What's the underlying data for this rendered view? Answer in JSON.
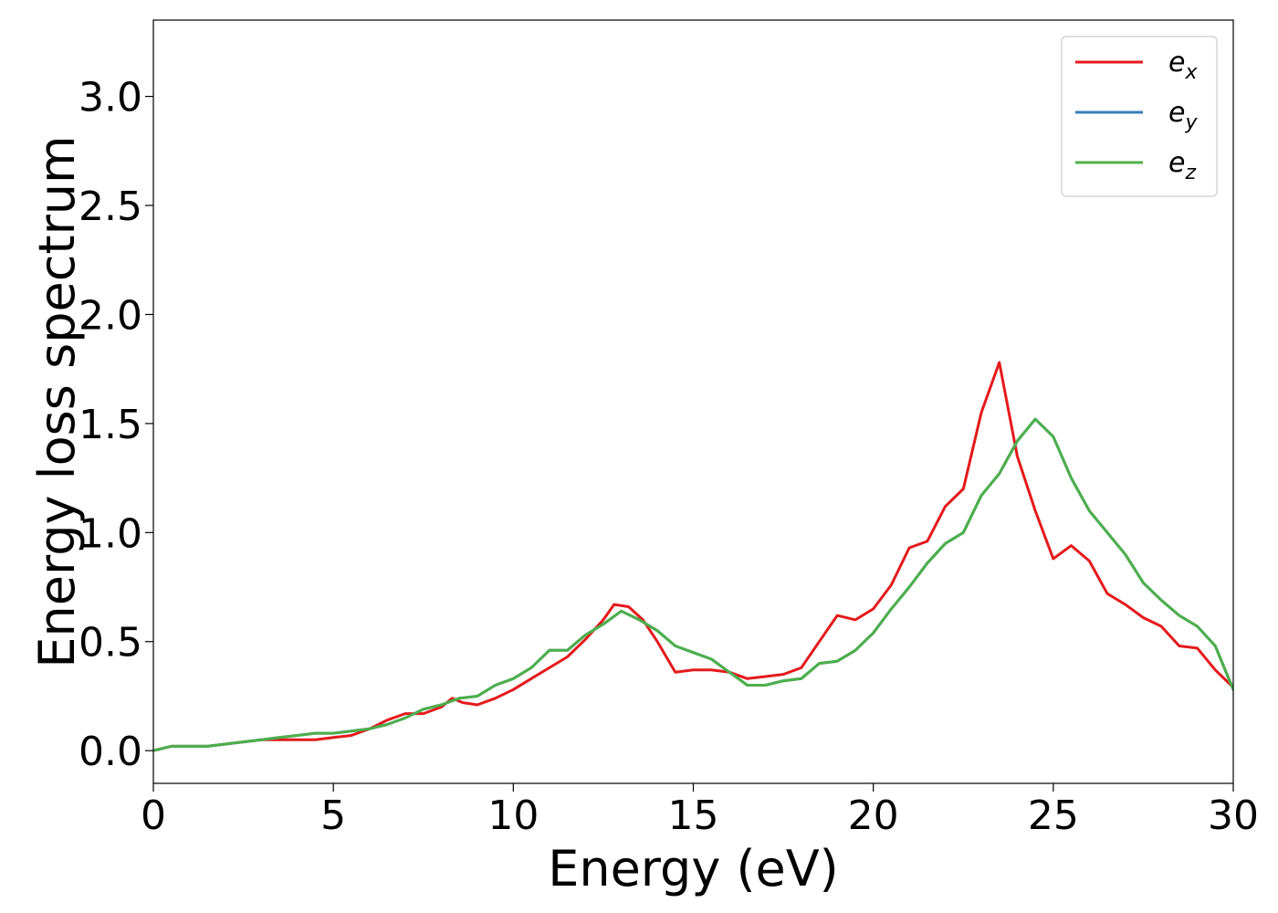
{
  "chart_data": {
    "type": "line",
    "xlabel": "Energy (eV)",
    "ylabel": "Energy loss spectrum",
    "xlim": [
      0,
      30
    ],
    "ylim": [
      -0.15,
      3.35
    ],
    "xticks": [
      "0",
      "5",
      "10",
      "15",
      "20",
      "25",
      "30"
    ],
    "yticks": [
      "0.0",
      "0.5",
      "1.0",
      "1.5",
      "2.0",
      "2.5",
      "3.0"
    ],
    "grid": false,
    "legend_position": "top-right",
    "series": [
      {
        "name": "e_x",
        "legend_base": "e",
        "legend_sub": "x",
        "color": "#e41a1c",
        "x": [
          0,
          0.5,
          1,
          1.5,
          2,
          2.5,
          3,
          3.5,
          4,
          4.5,
          5,
          5.5,
          6,
          6.5,
          7,
          7.5,
          8,
          8.3,
          8.6,
          9,
          9.5,
          10,
          10.5,
          11,
          11.5,
          12,
          12.5,
          12.8,
          13.2,
          13.6,
          14,
          14.5,
          15,
          15.5,
          16,
          16.5,
          17,
          17.5,
          18,
          18.5,
          19,
          19.5,
          20,
          20.5,
          21,
          21.5,
          22,
          22.5,
          23,
          23.5,
          24,
          24.5,
          25,
          25.5,
          26,
          26.5,
          27,
          27.5,
          28,
          28.5,
          29,
          29.5,
          30
        ],
        "values": [
          0.0,
          0.02,
          0.02,
          0.02,
          0.03,
          0.04,
          0.05,
          0.05,
          0.05,
          0.05,
          0.06,
          0.07,
          0.1,
          0.14,
          0.17,
          0.17,
          0.2,
          0.24,
          0.22,
          0.21,
          0.24,
          0.28,
          0.33,
          0.38,
          0.43,
          0.51,
          0.6,
          0.67,
          0.66,
          0.6,
          0.5,
          0.36,
          0.37,
          0.37,
          0.36,
          0.33,
          0.34,
          0.35,
          0.38,
          0.5,
          0.62,
          0.6,
          0.65,
          0.76,
          0.93,
          0.96,
          1.12,
          1.2,
          1.55,
          1.78,
          1.35,
          1.1,
          0.88,
          0.94,
          0.87,
          0.72,
          0.67,
          0.61,
          0.57,
          0.48,
          0.47,
          0.37,
          0.29
        ]
      },
      {
        "name": "e_y",
        "legend_base": "e",
        "legend_sub": "y",
        "color": "#377eb8",
        "x": [
          0,
          0.5,
          1,
          1.5,
          2,
          2.5,
          3,
          3.5,
          4,
          4.5,
          5,
          5.5,
          6,
          6.5,
          7,
          7.5,
          8,
          8.5,
          9,
          9.5,
          10,
          10.5,
          11,
          11.5,
          12,
          12.5,
          13,
          13.5,
          14,
          14.5,
          15,
          15.5,
          16,
          16.5,
          17,
          17.5,
          18,
          18.5,
          19,
          19.5,
          20,
          20.5,
          21,
          21.5,
          22,
          22.5,
          23,
          23.5,
          24,
          24.5,
          25,
          25.5,
          26,
          26.5,
          27,
          27.5,
          28,
          28.5,
          29,
          29.5,
          30
        ],
        "values": [
          0.0,
          0.02,
          0.02,
          0.02,
          0.03,
          0.04,
          0.05,
          0.06,
          0.07,
          0.08,
          0.08,
          0.09,
          0.1,
          0.12,
          0.15,
          0.19,
          0.21,
          0.24,
          0.25,
          0.3,
          0.33,
          0.38,
          0.46,
          0.46,
          0.53,
          0.58,
          0.64,
          0.6,
          0.55,
          0.48,
          0.45,
          0.42,
          0.36,
          0.3,
          0.3,
          0.32,
          0.33,
          0.4,
          0.41,
          0.46,
          0.54,
          0.65,
          0.75,
          0.86,
          0.95,
          1.0,
          1.17,
          1.27,
          1.42,
          1.52,
          1.44,
          1.25,
          1.1,
          1.0,
          0.9,
          0.77,
          0.69,
          0.62,
          0.57,
          0.48,
          0.28
        ]
      },
      {
        "name": "e_z",
        "legend_base": "e",
        "legend_sub": "z",
        "color": "#4daf4a",
        "x": [
          0,
          0.5,
          1,
          1.5,
          2,
          2.5,
          3,
          3.5,
          4,
          4.5,
          5,
          5.5,
          6,
          6.5,
          7,
          7.5,
          8,
          8.5,
          9,
          9.5,
          10,
          10.5,
          11,
          11.5,
          12,
          12.5,
          13,
          13.5,
          14,
          14.5,
          15,
          15.5,
          16,
          16.5,
          17,
          17.5,
          18,
          18.5,
          19,
          19.5,
          20,
          20.5,
          21,
          21.5,
          22,
          22.5,
          23,
          23.5,
          24,
          24.5,
          25,
          25.5,
          26,
          26.5,
          27,
          27.5,
          28,
          28.5,
          29,
          29.5,
          30
        ],
        "values": [
          0.0,
          0.02,
          0.02,
          0.02,
          0.03,
          0.04,
          0.05,
          0.06,
          0.07,
          0.08,
          0.08,
          0.09,
          0.1,
          0.12,
          0.15,
          0.19,
          0.21,
          0.24,
          0.25,
          0.3,
          0.33,
          0.38,
          0.46,
          0.46,
          0.53,
          0.58,
          0.64,
          0.6,
          0.55,
          0.48,
          0.45,
          0.42,
          0.36,
          0.3,
          0.3,
          0.32,
          0.33,
          0.4,
          0.41,
          0.46,
          0.54,
          0.65,
          0.75,
          0.86,
          0.95,
          1.0,
          1.17,
          1.27,
          1.42,
          1.52,
          1.44,
          1.25,
          1.1,
          1.0,
          0.9,
          0.77,
          0.69,
          0.62,
          0.57,
          0.48,
          0.28
        ]
      }
    ]
  }
}
